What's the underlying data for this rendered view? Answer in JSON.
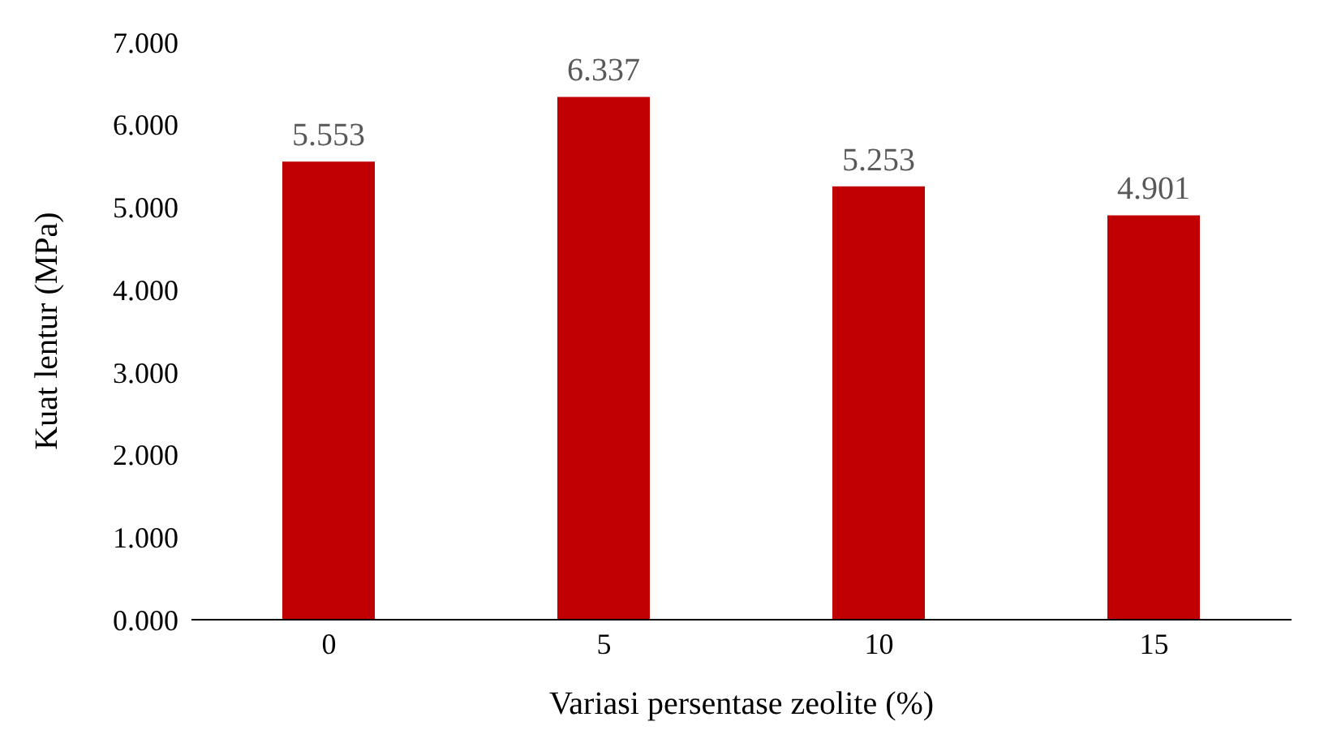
{
  "chart_data": {
    "type": "bar",
    "xlabel": "Variasi persentase zeolite (%)",
    "ylabel": "Kuat lentur (MPa)",
    "categories": [
      "0",
      "5",
      "10",
      "15"
    ],
    "values": [
      5.553,
      6.337,
      5.253,
      4.901
    ],
    "color": "#c00000",
    "ylim": [
      0,
      7
    ],
    "yticks": [
      {
        "value": 0,
        "label": "0.000"
      },
      {
        "value": 1,
        "label": "1.000"
      },
      {
        "value": 2,
        "label": "2.000"
      },
      {
        "value": 3,
        "label": "3.000"
      },
      {
        "value": 4,
        "label": "4.000"
      },
      {
        "value": 5,
        "label": "5.000"
      },
      {
        "value": 6,
        "label": "6.000"
      },
      {
        "value": 7,
        "label": "7.000"
      }
    ],
    "data_labels": true
  }
}
